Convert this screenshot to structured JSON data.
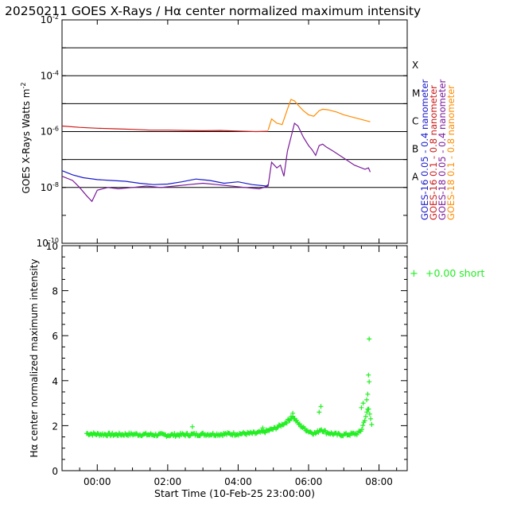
{
  "page": {
    "title": "20250211 GOES X-Rays / Hα center normalized maximum intensity"
  },
  "chart_data": [
    {
      "id": "goes",
      "type": "line",
      "yscale": "log",
      "ylabel": "GOES X-Rays Watts m",
      "ylabel_sup": "-2",
      "ylim_exp": [
        -10,
        -2
      ],
      "yticks": [
        {
          "mant": "10",
          "exp": "-2",
          "value_exp": -2
        },
        {
          "mant": "10",
          "exp": "-4",
          "value_exp": -4
        },
        {
          "mant": "10",
          "exp": "-6",
          "value_exp": -6
        },
        {
          "mant": "10",
          "exp": "-8",
          "value_exp": -8
        },
        {
          "mant": "10",
          "exp": "-10",
          "value_exp": -10
        }
      ],
      "grid_exp": [
        -8,
        -7,
        -6,
        -5,
        -4,
        -3
      ],
      "class_labels": [
        {
          "label": "A",
          "value_exp": -7.6
        },
        {
          "label": "B",
          "value_exp": -6.6
        },
        {
          "label": "C",
          "value_exp": -5.6
        },
        {
          "label": "M",
          "value_exp": -4.6
        },
        {
          "label": "X",
          "value_exp": -3.6
        }
      ],
      "legend": [
        {
          "name": "GOES-16 0.05 - 0.4 nanometer",
          "color": "#1a1acc"
        },
        {
          "name": "GOES-16 0.1 - 0.8 nanometer",
          "color": "#cc1a1a"
        },
        {
          "name": "GOES-18 0.05 - 0.4 nanometer",
          "color": "#7a1a9a"
        },
        {
          "name": "GOES-18 0.1 - 0.8 nanometer",
          "color": "#ff8c00"
        }
      ],
      "series": [
        {
          "name": "GOES-16 0.05 - 0.4 nanometer",
          "color": "#1a1acc",
          "x": [
            -1.0,
            -0.7,
            -0.4,
            0.0,
            0.4,
            0.8,
            1.2,
            1.6,
            2.0,
            2.4,
            2.8,
            3.2,
            3.6,
            4.0,
            4.4,
            4.8,
            4.85
          ],
          "log_y": [
            -7.4,
            -7.55,
            -7.65,
            -7.72,
            -7.75,
            -7.78,
            -7.85,
            -7.9,
            -7.88,
            -7.8,
            -7.7,
            -7.75,
            -7.85,
            -7.8,
            -7.9,
            -7.95,
            -7.9
          ]
        },
        {
          "name": "GOES-16 0.1 - 0.8 nanometer",
          "color": "#cc1a1a",
          "x": [
            -1.0,
            -0.5,
            0.0,
            0.5,
            1.0,
            1.5,
            2.0,
            2.5,
            3.0,
            3.5,
            4.0,
            4.5,
            4.85
          ],
          "log_y": [
            -5.8,
            -5.85,
            -5.88,
            -5.9,
            -5.92,
            -5.95,
            -5.95,
            -5.96,
            -5.97,
            -5.96,
            -5.98,
            -6.0,
            -5.99
          ]
        },
        {
          "name": "GOES-18 0.05 - 0.4 nanometer",
          "color": "#7a1a9a",
          "x": [
            -1.0,
            -0.7,
            -0.5,
            -0.3,
            -0.15,
            0.0,
            0.3,
            0.6,
            1.0,
            1.4,
            1.8,
            2.2,
            2.6,
            3.0,
            3.4,
            3.8,
            4.2,
            4.6,
            4.85,
            4.95,
            5.1,
            5.2,
            5.3,
            5.4,
            5.5,
            5.6,
            5.7,
            5.85,
            6.0,
            6.1,
            6.2,
            6.3,
            6.4,
            6.5,
            6.7,
            7.0,
            7.3,
            7.6,
            7.7,
            7.75
          ],
          "log_y": [
            -7.6,
            -7.75,
            -8.0,
            -8.3,
            -8.5,
            -8.1,
            -8.0,
            -8.05,
            -8.0,
            -7.95,
            -8.0,
            -7.95,
            -7.9,
            -7.85,
            -7.9,
            -7.95,
            -8.0,
            -8.05,
            -7.95,
            -7.1,
            -7.3,
            -7.2,
            -7.6,
            -6.7,
            -6.2,
            -5.7,
            -5.8,
            -6.2,
            -6.5,
            -6.65,
            -6.85,
            -6.5,
            -6.45,
            -6.55,
            -6.7,
            -6.95,
            -7.2,
            -7.35,
            -7.3,
            -7.45
          ]
        },
        {
          "name": "GOES-18 0.1 - 0.8 nanometer",
          "color": "#ff8c00",
          "x": [
            4.85,
            4.95,
            5.1,
            5.25,
            5.4,
            5.5,
            5.6,
            5.7,
            5.85,
            6.0,
            6.15,
            6.3,
            6.4,
            6.55,
            6.8,
            7.0,
            7.3,
            7.6,
            7.75
          ],
          "log_y": [
            -5.95,
            -5.55,
            -5.7,
            -5.75,
            -5.2,
            -4.85,
            -4.9,
            -5.05,
            -5.25,
            -5.4,
            -5.45,
            -5.25,
            -5.2,
            -5.22,
            -5.3,
            -5.4,
            -5.5,
            -5.6,
            -5.65
          ]
        }
      ]
    },
    {
      "id": "halpha",
      "type": "scatter",
      "ylabel": "Hα center normalized maximum intensity",
      "xlabel": "Start Time (10-Feb-25 23:00:00)",
      "ylim": [
        0,
        10
      ],
      "yticks": [
        "0",
        "2",
        "4",
        "6",
        "8",
        "10"
      ],
      "xlim_hours": [
        -1.0,
        8.8
      ],
      "xticks": [
        {
          "label": "00:00",
          "hour": 0
        },
        {
          "label": "02:00",
          "hour": 2
        },
        {
          "label": "04:00",
          "hour": 4
        },
        {
          "label": "06:00",
          "hour": 6
        },
        {
          "label": "08:00",
          "hour": 8
        }
      ],
      "legend": [
        {
          "marker": "+",
          "label": "+0.00 short",
          "color": "#22ee22"
        }
      ],
      "marker_color": "#22ee22",
      "profile_hours": [
        -0.3,
        0.0,
        0.5,
        1.0,
        1.5,
        2.0,
        2.5,
        3.0,
        3.5,
        4.0,
        4.5,
        4.8,
        5.0,
        5.2,
        5.4,
        5.55,
        5.7,
        5.85,
        6.0,
        6.2,
        6.35,
        6.5,
        6.8,
        7.0,
        7.2,
        7.4,
        7.5,
        7.6,
        7.7,
        7.8
      ],
      "profile_values": [
        1.65,
        1.62,
        1.6,
        1.62,
        1.6,
        1.58,
        1.6,
        1.62,
        1.62,
        1.64,
        1.66,
        1.75,
        1.85,
        2.0,
        2.2,
        2.4,
        2.1,
        1.9,
        1.75,
        1.65,
        1.85,
        1.7,
        1.6,
        1.6,
        1.62,
        1.65,
        1.8,
        2.3,
        2.8,
        2.0
      ],
      "outliers": [
        {
          "hour": 7.72,
          "value": 5.85
        },
        {
          "hour": 7.7,
          "value": 4.25
        },
        {
          "hour": 7.72,
          "value": 3.95
        },
        {
          "hour": 7.68,
          "value": 3.4
        },
        {
          "hour": 7.65,
          "value": 3.15
        },
        {
          "hour": 7.55,
          "value": 3.0
        },
        {
          "hour": 7.5,
          "value": 2.8
        },
        {
          "hour": 6.35,
          "value": 2.85
        },
        {
          "hour": 6.3,
          "value": 2.6
        },
        {
          "hour": 5.55,
          "value": 2.55
        },
        {
          "hour": 5.5,
          "value": 2.4
        },
        {
          "hour": 2.7,
          "value": 1.95
        },
        {
          "hour": 4.7,
          "value": 1.9
        },
        {
          "hour": 4.9,
          "value": 1.85
        }
      ]
    }
  ]
}
